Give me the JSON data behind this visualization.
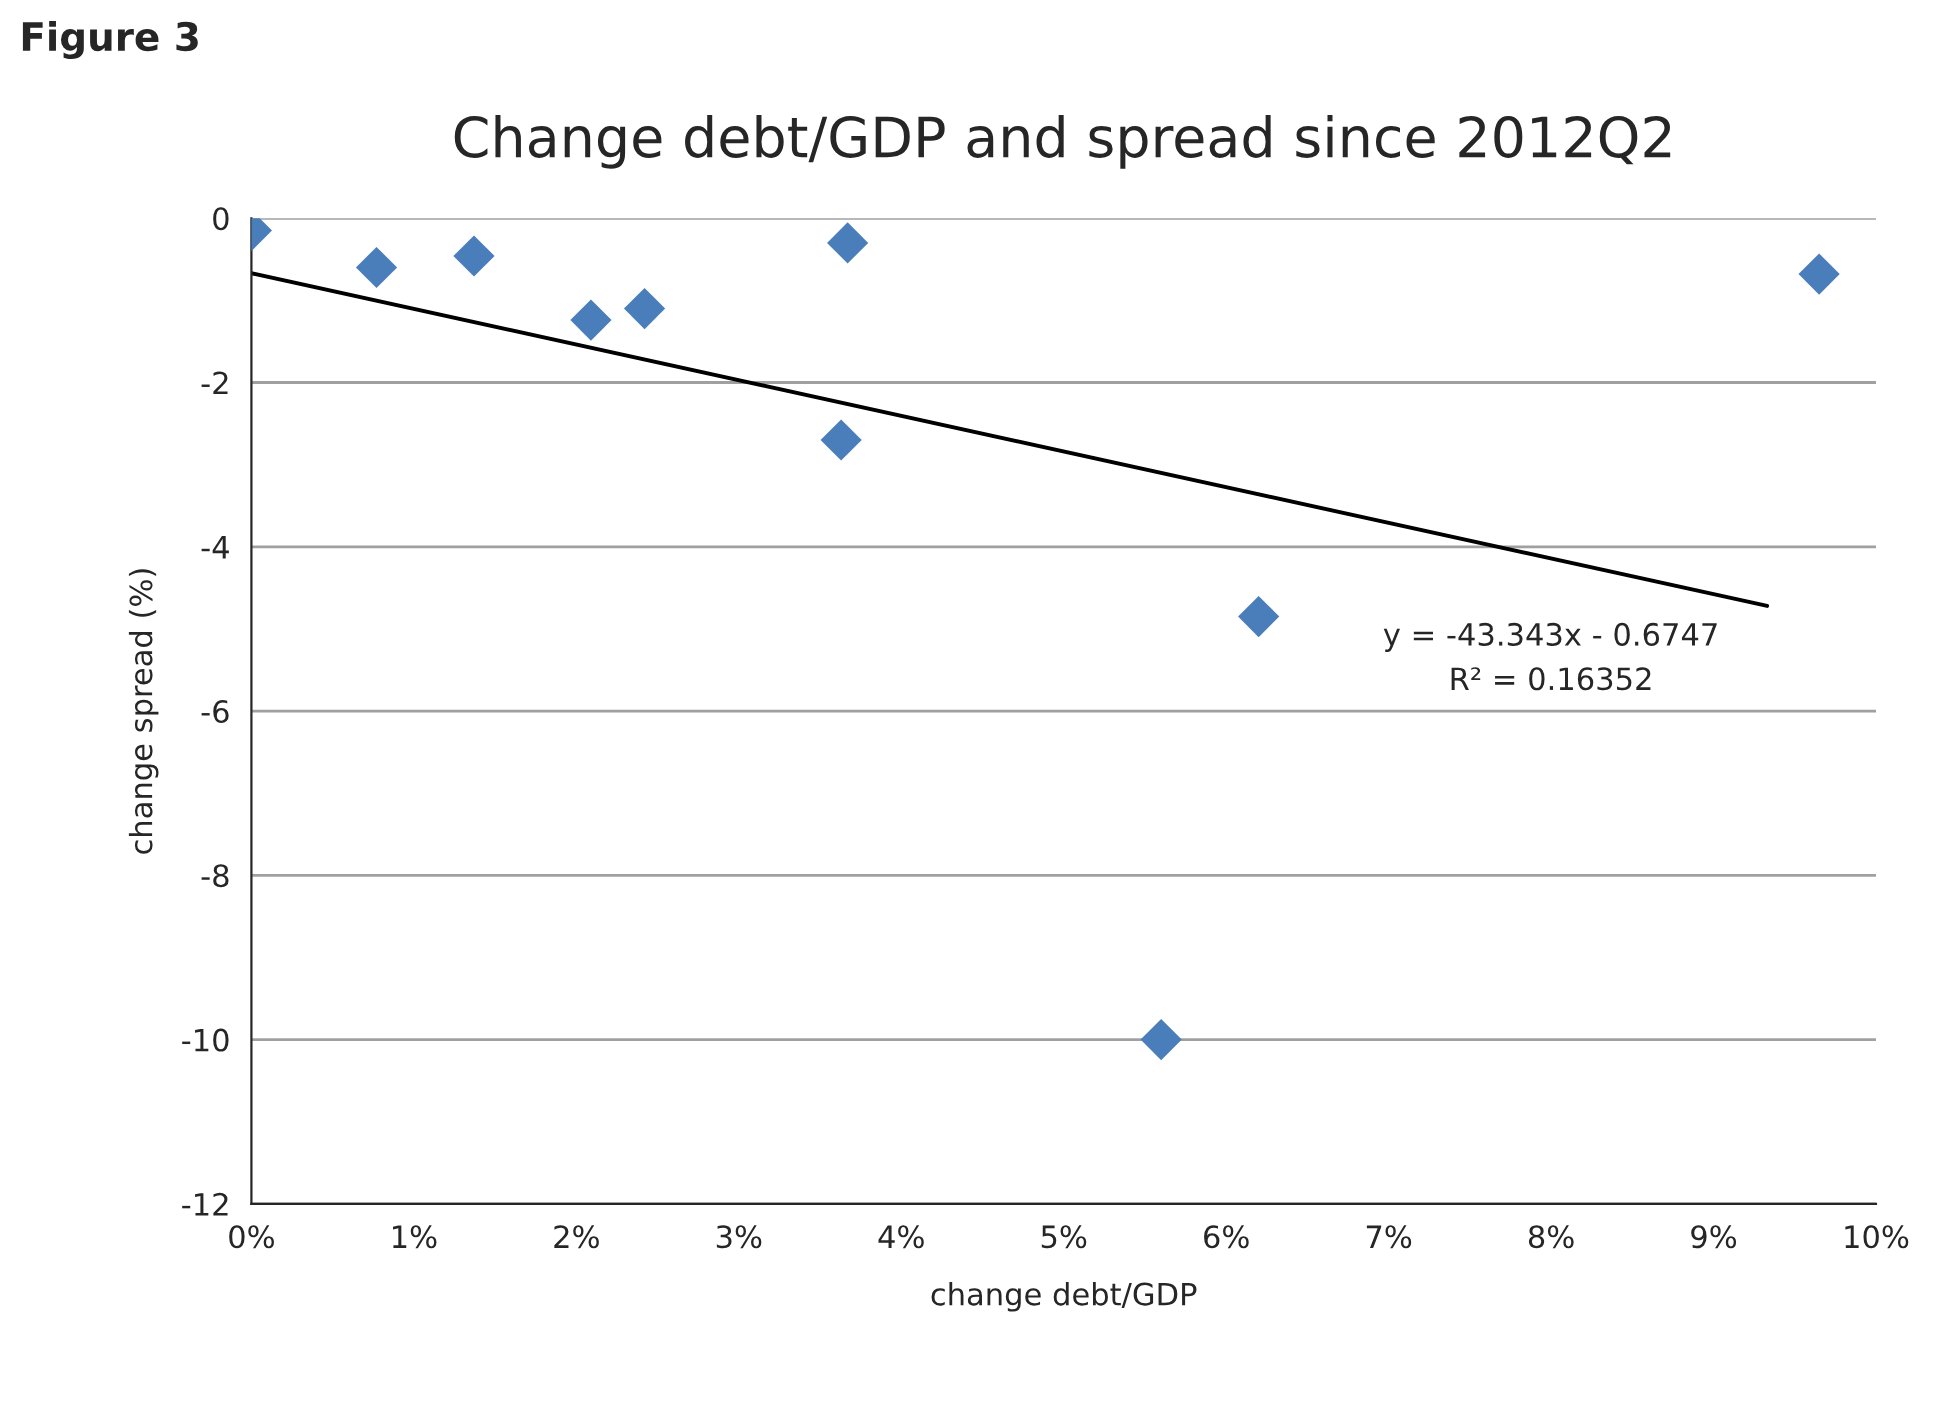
{
  "chart_data": {
    "type": "scatter",
    "title": "Change debt/GDP and spread since 2012Q2",
    "xlabel": "change debt/GDP",
    "ylabel": "change spread (%)",
    "series": [
      {
        "color": "#4a7ebb",
        "marker": "diamond",
        "x": [
          0,
          0.77,
          1.37,
          2.09,
          2.42,
          3.67,
          3.63,
          5.6,
          6.2,
          9.65
        ],
        "values": [
          -0.15,
          -0.6,
          -0.46,
          -1.24,
          -1.1,
          -0.3,
          -2.7,
          -10.0,
          -4.85,
          -0.68
        ]
      },
      {
        "type": "line",
        "color": "#000000",
        "marker": "none",
        "line_style": "solid",
        "x": [
          0,
          9.33
        ],
        "values": [
          -0.67,
          -4.72
        ]
      }
    ],
    "annotations": [
      "Figure 3",
      "y = -43.343x - 0.6747",
      "R² = 0.16352"
    ],
    "xlim": [
      0,
      10
    ],
    "xticks": [
      {
        "value": 0,
        "label": "0%"
      },
      {
        "value": 1,
        "label": "1%"
      },
      {
        "value": 2,
        "label": "2%"
      },
      {
        "value": 3,
        "label": "3%"
      },
      {
        "value": 4,
        "label": "4%"
      },
      {
        "value": 5,
        "label": "5%"
      },
      {
        "value": 6,
        "label": "6%"
      },
      {
        "value": 7,
        "label": "7%"
      },
      {
        "value": 8,
        "label": "8%"
      },
      {
        "value": 9,
        "label": "9%"
      },
      {
        "value": 10,
        "label": "10%"
      }
    ],
    "ylim": [
      -12,
      0
    ],
    "yticks": [
      -12,
      -10,
      -8,
      -6,
      -4,
      -2,
      0
    ],
    "grid": "y",
    "legend": false
  }
}
